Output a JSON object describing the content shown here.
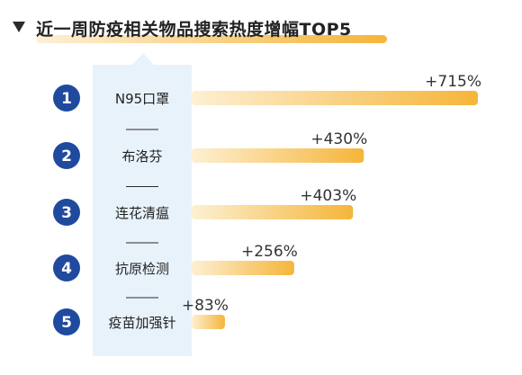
{
  "title": "近一周防疫相关物品搜索热度增幅TOP5",
  "colors": {
    "rank_circle": "#1f4a9e",
    "bar_start": "#fdf0d3",
    "bar_end": "#f5b53a",
    "title_underline": "#f5b53a",
    "label_panel": "#e8f2fb",
    "divider": "#2b2b2b"
  },
  "chart_data": {
    "type": "bar",
    "orientation": "horizontal",
    "title": "近一周防疫相关物品搜索热度增幅TOP5",
    "categories": [
      "N95口罩",
      "布洛芬",
      "连花清瘟",
      "抗原检测",
      "疫苗加强针"
    ],
    "ranks": [
      "1",
      "2",
      "3",
      "4",
      "5"
    ],
    "values": [
      715,
      430,
      403,
      256,
      83
    ],
    "value_labels": [
      "+715%",
      "+430%",
      "+403%",
      "+256%",
      "+83%"
    ],
    "unit": "%",
    "xlim": [
      0,
      715
    ],
    "grid": false,
    "legend": "none"
  }
}
